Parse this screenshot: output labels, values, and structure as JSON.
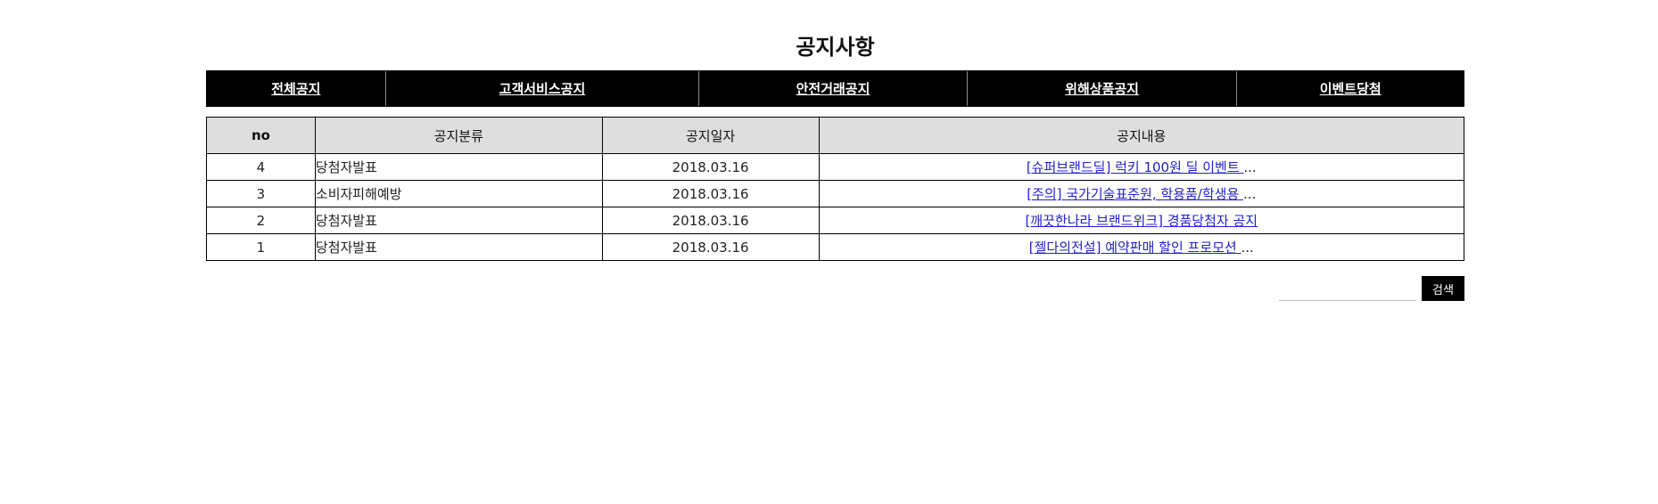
{
  "page": {
    "title": "공지사항"
  },
  "categories": [
    {
      "label": "전체공지"
    },
    {
      "label": "고객서비스공지"
    },
    {
      "label": "안전거래공지"
    },
    {
      "label": "위해상품공지"
    },
    {
      "label": "이벤트당첨"
    }
  ],
  "table": {
    "headers": {
      "no": "no",
      "category": "공지분류",
      "date": "공지일자",
      "content": "공지내용"
    },
    "rows": [
      {
        "no": "4",
        "category": "당첨자발표",
        "date": "2018.03.16",
        "content": "[슈퍼브랜드딜] 럭키 100원 딜 이벤트 ",
        "ellipsis": "..."
      },
      {
        "no": "3",
        "category": "소비자피해예방",
        "date": "2018.03.16",
        "content": "[주의] 국가기술표준원, 학용품/학생용 ",
        "ellipsis": "..."
      },
      {
        "no": "2",
        "category": "당첨자발표",
        "date": "2018.03.16",
        "content": "[깨끗한나라 브랜드위크] 경품당첨자 공지",
        "ellipsis": ""
      },
      {
        "no": "1",
        "category": "당첨자발표",
        "date": "2018.03.16",
        "content": "[젤다의전설] 예약판매 할인 프로모션 ",
        "ellipsis": "..."
      }
    ]
  },
  "search": {
    "value": "",
    "button_label": "검색"
  },
  "colors": {
    "nav_background": "#000000",
    "header_background": "#dedede",
    "link": "#2222cc"
  }
}
